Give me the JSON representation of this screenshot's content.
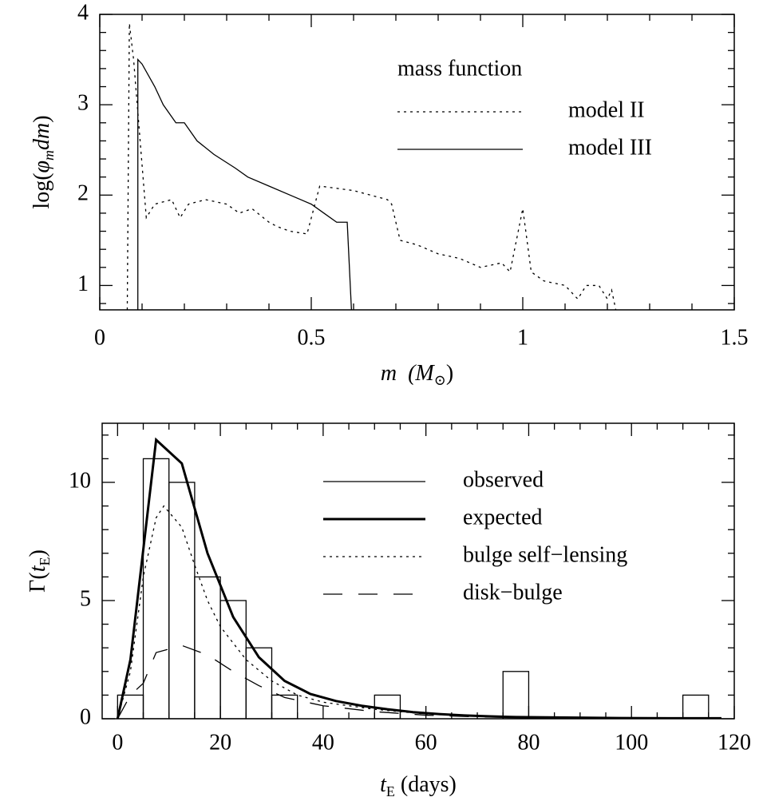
{
  "chart_data": [
    {
      "type": "line",
      "xlabel": [
        "m",
        "  (M",
        "⊙",
        ")"
      ],
      "xlabel_sub": [
        false,
        false,
        true,
        false
      ],
      "xlabel_italic": [
        true,
        true,
        false,
        false
      ],
      "ylabel": [
        "log(",
        "φ",
        "m",
        "dm",
        ")"
      ],
      "ylabel_sub": [
        false,
        false,
        true,
        false,
        false
      ],
      "ylabel_italic": [
        false,
        true,
        true,
        true,
        false
      ],
      "xlim": [
        0,
        1.5
      ],
      "ylim": [
        0.73,
        4
      ],
      "xticks": [
        0,
        0.5,
        1,
        1.5
      ],
      "yticks": [
        1,
        2,
        3,
        4
      ],
      "xminor": [
        0.1,
        0.2,
        0.3,
        0.4,
        0.6,
        0.7,
        0.8,
        0.9,
        1.1,
        1.2,
        1.3,
        1.4
      ],
      "yminor": [
        0.8,
        1.2,
        1.4,
        1.6,
        1.8,
        2.2,
        2.4,
        2.6,
        2.8,
        3.2,
        3.4,
        3.6,
        3.8
      ],
      "legend_title": "mass function",
      "series": [
        {
          "name": "model II",
          "style": "dotted",
          "width": 1.3,
          "x": [
            0.065,
            0.07,
            0.08,
            0.11,
            0.13,
            0.17,
            0.19,
            0.21,
            0.25,
            0.3,
            0.33,
            0.36,
            0.4,
            0.42,
            0.45,
            0.49,
            0.52,
            0.6,
            0.68,
            0.69,
            0.71,
            0.75,
            0.8,
            0.85,
            0.9,
            0.95,
            0.97,
            1.0,
            1.02,
            1.05,
            1.1,
            1.13,
            1.15,
            1.18,
            1.2,
            1.21,
            1.22
          ],
          "values": [
            0.73,
            3.9,
            3.5,
            1.75,
            1.9,
            1.95,
            1.75,
            1.9,
            1.95,
            1.9,
            1.8,
            1.85,
            1.7,
            1.65,
            1.6,
            1.57,
            2.1,
            2.05,
            1.95,
            1.9,
            1.5,
            1.45,
            1.35,
            1.3,
            1.2,
            1.25,
            1.15,
            1.85,
            1.15,
            1.05,
            1.0,
            0.85,
            1.0,
            1.0,
            0.85,
            0.95,
            0.73
          ]
        },
        {
          "name": "model III",
          "style": "solid",
          "width": 1.3,
          "x": [
            0.09,
            0.09,
            0.1,
            0.13,
            0.15,
            0.18,
            0.2,
            0.23,
            0.27,
            0.32,
            0.35,
            0.4,
            0.45,
            0.5,
            0.53,
            0.56,
            0.585,
            0.595
          ],
          "values": [
            0.73,
            3.5,
            3.45,
            3.2,
            3.0,
            2.8,
            2.8,
            2.6,
            2.45,
            2.3,
            2.2,
            2.1,
            2.0,
            1.9,
            1.8,
            1.7,
            1.7,
            0.73
          ]
        }
      ]
    },
    {
      "type": "histogram",
      "xlabel": [
        "t",
        "E",
        " (days)"
      ],
      "xlabel_sub": [
        false,
        true,
        false
      ],
      "xlabel_italic": [
        true,
        false,
        false
      ],
      "ylabel": [
        "Γ(",
        "t",
        "E",
        ")"
      ],
      "ylabel_sub": [
        false,
        false,
        true,
        false
      ],
      "ylabel_italic": [
        false,
        true,
        false,
        false
      ],
      "xlim": [
        -3,
        120
      ],
      "ylim": [
        0,
        12.5
      ],
      "xticks": [
        0,
        20,
        40,
        60,
        80,
        100,
        120
      ],
      "yticks": [
        0,
        5,
        10
      ],
      "xminor": [
        5,
        10,
        15,
        25,
        30,
        35,
        45,
        50,
        55,
        65,
        70,
        75,
        85,
        90,
        95,
        105,
        110,
        115
      ],
      "yminor": [
        1,
        2,
        3,
        4,
        6,
        7,
        8,
        9,
        11,
        12
      ],
      "series": [
        {
          "name": "observed",
          "style": "solid",
          "width": 1.3,
          "bins": [
            0,
            5,
            10,
            15,
            20,
            25,
            30,
            35,
            40,
            45,
            50,
            55,
            60,
            65,
            70,
            75,
            80,
            85,
            90,
            95,
            100,
            105,
            110,
            115,
            120
          ],
          "values": [
            1,
            11,
            10,
            6,
            5,
            3,
            1,
            0,
            0,
            0,
            1,
            0,
            0,
            0,
            0,
            2,
            0,
            0,
            0,
            0,
            0,
            0,
            1,
            0
          ]
        },
        {
          "name": "expected",
          "style": "solid",
          "width": 3,
          "x": [
            0,
            2.5,
            7.5,
            12.5,
            17.5,
            22.5,
            27.5,
            32.5,
            37.5,
            42.5,
            47.5,
            52.5,
            57.5,
            62.5,
            67.5,
            72.5,
            77.5,
            87.5,
            97.5,
            107.5,
            117.5
          ],
          "values": [
            0,
            2.5,
            11.8,
            10.8,
            7.0,
            4.3,
            2.6,
            1.6,
            1.05,
            0.75,
            0.55,
            0.4,
            0.28,
            0.2,
            0.14,
            0.1,
            0.07,
            0.05,
            0.03,
            0.02,
            0.02
          ]
        },
        {
          "name": "bulge self−lensing",
          "style": "dotted",
          "width": 1.3,
          "x": [
            0,
            2.5,
            5,
            7.5,
            9,
            12.5,
            15,
            17.5,
            20,
            25,
            30,
            35,
            40,
            50,
            60,
            70,
            80,
            117.5
          ],
          "values": [
            0,
            2.0,
            6,
            8.5,
            9,
            8.1,
            6.5,
            5,
            3.9,
            2.5,
            1.6,
            1.0,
            0.7,
            0.4,
            0.2,
            0.1,
            0.05,
            0.01
          ]
        },
        {
          "name": "disk−bulge",
          "style": "dashed",
          "width": 1.3,
          "x": [
            0,
            2.5,
            5,
            7.5,
            12.5,
            17.5,
            22.5,
            27.5,
            32.5,
            40,
            50,
            60,
            70,
            80,
            117.5
          ],
          "values": [
            0,
            1,
            1.5,
            2.8,
            3.1,
            2.7,
            2.0,
            1.4,
            0.9,
            0.55,
            0.3,
            0.15,
            0.08,
            0.04,
            0.01
          ]
        }
      ]
    }
  ]
}
